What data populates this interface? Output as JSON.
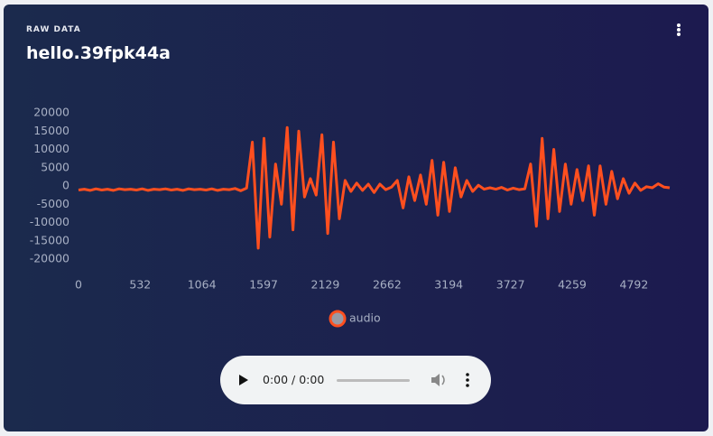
{
  "header": {
    "eyebrow": "RAW DATA",
    "title": "hello.39fpk44a"
  },
  "chart_data": {
    "type": "line",
    "x": [
      0,
      50,
      100,
      150,
      200,
      250,
      300,
      350,
      400,
      450,
      500,
      550,
      600,
      650,
      700,
      750,
      800,
      850,
      900,
      950,
      1000,
      1050,
      1100,
      1150,
      1200,
      1250,
      1300,
      1350,
      1400,
      1450,
      1500,
      1550,
      1600,
      1650,
      1700,
      1750,
      1800,
      1850,
      1900,
      1950,
      2000,
      2050,
      2100,
      2150,
      2200,
      2250,
      2300,
      2350,
      2400,
      2450,
      2500,
      2550,
      2600,
      2650,
      2700,
      2750,
      2800,
      2850,
      2900,
      2950,
      3000,
      3050,
      3100,
      3150,
      3200,
      3250,
      3300,
      3350,
      3400,
      3450,
      3500,
      3550,
      3600,
      3650,
      3700,
      3750,
      3800,
      3850,
      3900,
      3950,
      4000,
      4050,
      4100,
      4150,
      4200,
      4250,
      4300,
      4350,
      4400,
      4450,
      4500,
      4550,
      4600,
      4650,
      4700,
      4750,
      4800,
      4850,
      4900,
      4950,
      5000,
      5050,
      5100
    ],
    "series": [
      {
        "name": "audio",
        "color": "#ff4f1f",
        "values": [
          -1100,
          -900,
          -1200,
          -800,
          -1100,
          -900,
          -1200,
          -800,
          -1000,
          -900,
          -1100,
          -800,
          -1200,
          -900,
          -1000,
          -800,
          -1100,
          -900,
          -1200,
          -800,
          -1000,
          -900,
          -1100,
          -800,
          -1200,
          -900,
          -1000,
          -700,
          -1300,
          -600,
          12000,
          -17000,
          13000,
          -14000,
          6000,
          -5000,
          16000,
          -12000,
          15000,
          -3000,
          2000,
          -2500,
          14000,
          -13000,
          12000,
          -9000,
          1500,
          -1500,
          800,
          -1200,
          500,
          -1800,
          500,
          -1000,
          -300,
          1500,
          -6000,
          2500,
          -4000,
          3000,
          -5000,
          7000,
          -8000,
          6500,
          -7000,
          5000,
          -3000,
          1500,
          -1500,
          200,
          -900,
          -500,
          -900,
          -400,
          -1100,
          -600,
          -1000,
          -800,
          6000,
          -11000,
          13000,
          -9000,
          10000,
          -7000,
          6000,
          -5000,
          4500,
          -4000,
          5500,
          -8000,
          5500,
          -5000,
          4000,
          -3500,
          2000,
          -2000,
          800,
          -1200,
          -200,
          -500,
          600,
          -300,
          -500
        ]
      }
    ],
    "xlim": [
      0,
      5100
    ],
    "xticks": [
      0,
      532,
      1064,
      1597,
      2129,
      2662,
      3194,
      3727,
      4259,
      4792
    ],
    "ylim": [
      -20000,
      20000
    ],
    "yticks": [
      -20000,
      -15000,
      -10000,
      -5000,
      0,
      5000,
      10000,
      15000,
      20000
    ],
    "grid": false
  },
  "player": {
    "time": "0:00 / 0:00"
  }
}
